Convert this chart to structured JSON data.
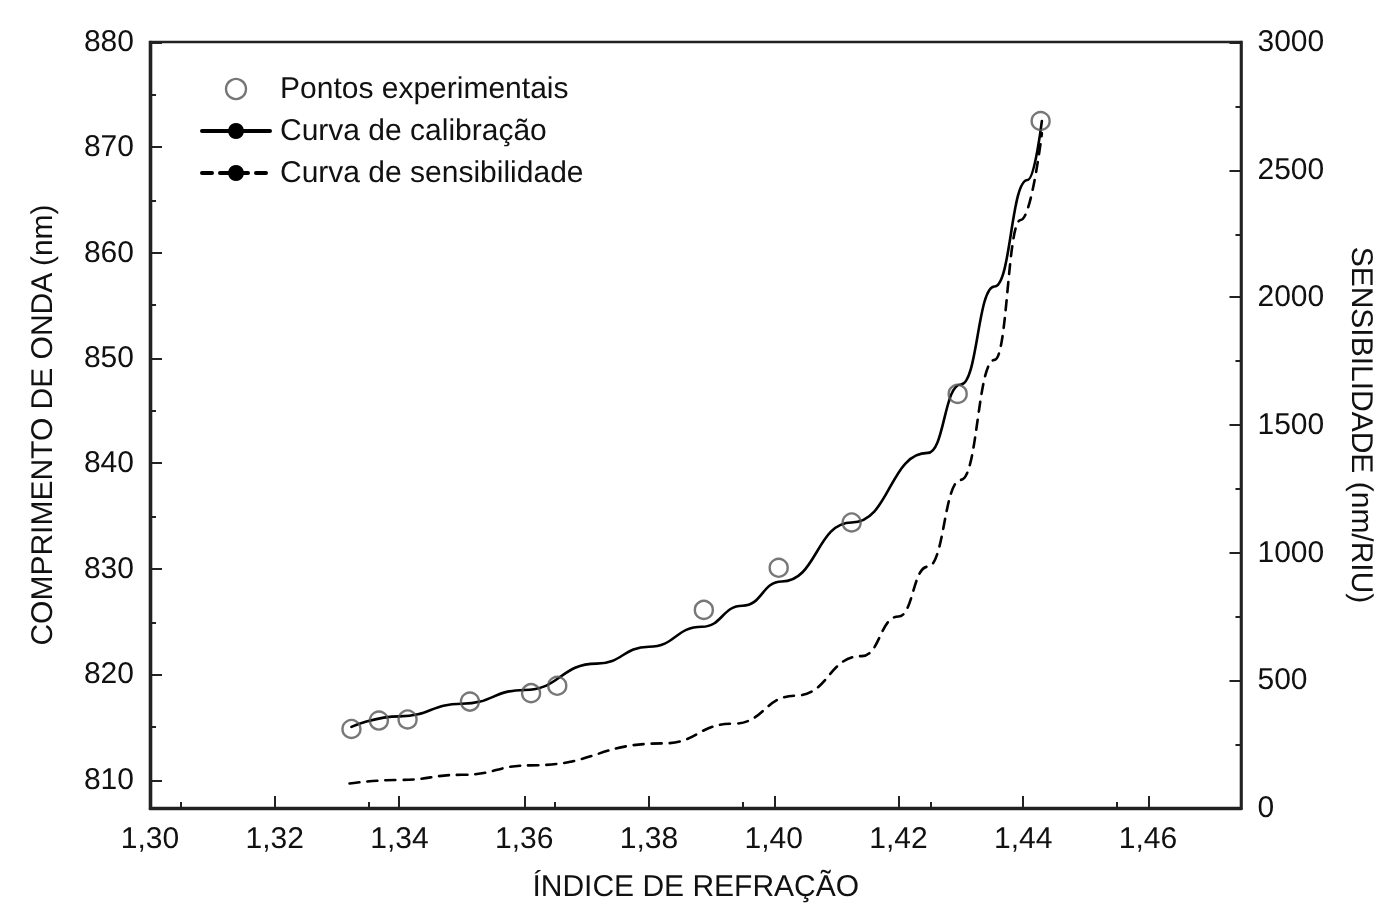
{
  "chart_data": {
    "type": "scatter",
    "xlabel": "ÍNDICE DE REFRAÇÃO",
    "ylabel": "COMPRIMENTO DE ONDA (nm)",
    "y2label": "SENSIBILIDADE (nm/RIU)",
    "xlim": [
      1.3,
      1.475
    ],
    "xticks": [
      {
        "value": 1.3,
        "label": "1,30"
      },
      {
        "value": 1.32,
        "label": "1,32"
      },
      {
        "value": 1.34,
        "label": "1,34"
      },
      {
        "value": 1.36,
        "label": "1,36"
      },
      {
        "value": 1.38,
        "label": "1,38"
      },
      {
        "value": 1.4,
        "label": "1,40"
      },
      {
        "value": 1.42,
        "label": "1,42"
      },
      {
        "value": 1.44,
        "label": "1,44"
      },
      {
        "value": 1.46,
        "label": "1,46"
      }
    ],
    "ylim": [
      807.3,
      880
    ],
    "yticks": [
      810,
      820,
      830,
      840,
      850,
      860,
      870,
      880
    ],
    "y2lim": [
      0,
      3000
    ],
    "y2ticks": [
      0,
      500,
      1000,
      1500,
      2000,
      2500,
      3000
    ],
    "grid": false,
    "legend": "top left",
    "series": [
      {
        "name": "Pontos experimentais",
        "marker": "circle",
        "color": "#555555",
        "x": [
          1.3323,
          1.3367,
          1.3413,
          1.3513,
          1.3611,
          1.3653,
          1.3888,
          1.4008,
          1.4125,
          1.4295,
          1.4428
        ],
        "values": [
          814.8,
          815.6,
          815.7,
          817.4,
          818.2,
          818.9,
          826.1,
          830.1,
          834.4,
          846.6,
          872.5
        ]
      },
      {
        "name": "Curva de calibração",
        "type": "line",
        "marker": "none",
        "line_style": "solid",
        "color": "#000000",
        "x": [
          1.3323,
          1.34,
          1.35,
          1.36,
          1.3716,
          1.38,
          1.3885,
          1.395,
          1.4013,
          1.4125,
          1.4247,
          1.43,
          1.4354,
          1.4407,
          1.443
        ],
        "values": [
          815.0,
          816.0,
          817.2,
          818.5,
          821.0,
          822.6,
          824.5,
          826.5,
          828.8,
          834.4,
          841.0,
          847.5,
          856.8,
          866.9,
          872.5
        ]
      },
      {
        "name": "Curva de sensibilidade",
        "type": "line",
        "marker": "none",
        "line_style": "dashed",
        "color": "#000000",
        "axis": "y2",
        "x": [
          1.332,
          1.34,
          1.35,
          1.361,
          1.3822,
          1.3935,
          1.4035,
          1.4141,
          1.42,
          1.4247,
          1.43,
          1.4354,
          1.4396,
          1.443
        ],
        "values": [
          96,
          110,
          130,
          167,
          253,
          330,
          440,
          595,
          750,
          945,
          1285,
          1755,
          2303,
          2642
        ]
      }
    ]
  }
}
